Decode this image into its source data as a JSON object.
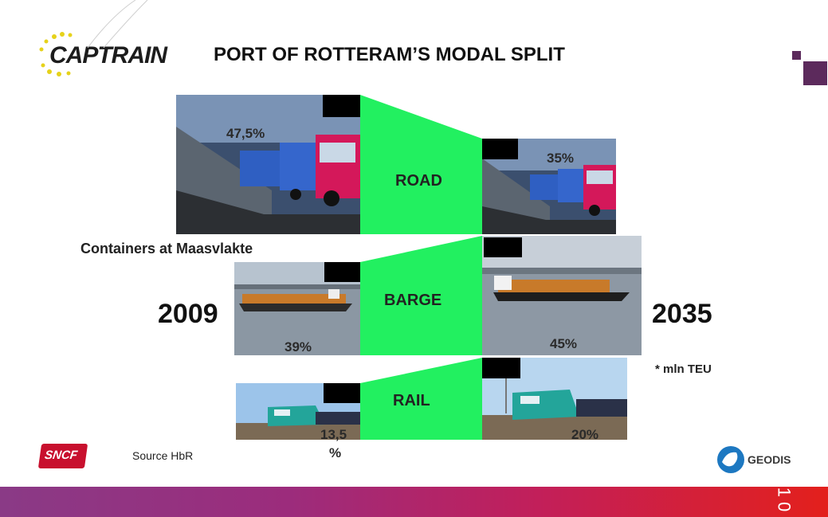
{
  "slide": {
    "title": "PORT OF ROTTERAM’S MODAL SPLIT",
    "subtitle": "Containers at Maasvlakte",
    "year_left": "2009",
    "year_right": "2035",
    "unit_note": "* mln TEU",
    "source": "Source HbR",
    "page_number": "1 0"
  },
  "brands": {
    "captrain": "CAPTRAIN",
    "sncf": "SNCF",
    "geodis": "GEODIS"
  },
  "modes": {
    "road": {
      "label": "ROAD",
      "pct_2009": "47,5%",
      "pct_2035": "35%"
    },
    "barge": {
      "label": "BARGE",
      "pct_2009": "39%",
      "pct_2035": "45%"
    },
    "rail": {
      "label": "RAIL",
      "pct_2009_line1": "13,5",
      "pct_2009_line2": "%",
      "pct_2035": "20%"
    }
  },
  "colors": {
    "flow_green": "#22f060",
    "accent_purple": "#5c2a5c",
    "footer_gradient": [
      "#8a3a86",
      "#e3201c"
    ]
  }
}
